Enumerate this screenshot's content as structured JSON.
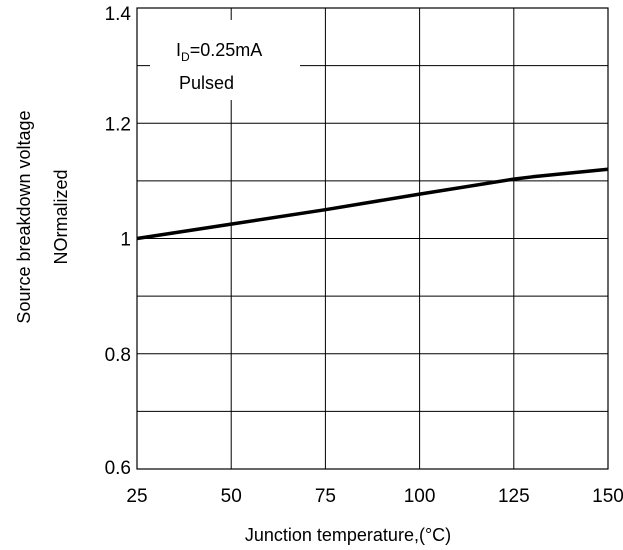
{
  "chart_data": {
    "type": "line",
    "title": "",
    "xlabel": "Junction temperature,(°C)",
    "ylabel_lines": [
      "Source breakdown voltage",
      "NOrmalized"
    ],
    "xlim": [
      25,
      150
    ],
    "ylim": [
      0.6,
      1.4
    ],
    "x_ticks": [
      25,
      50,
      75,
      100,
      125,
      150
    ],
    "x_tick_labels": [
      "25",
      "50",
      "75",
      "100",
      "125",
      "150"
    ],
    "y_ticks": [
      0.6,
      0.8,
      1.0,
      1.2,
      1.4
    ],
    "y_tick_labels": [
      "0.6",
      "0.8",
      "1",
      "1.2",
      "1.4"
    ],
    "y_minor_grid": [
      0.7,
      0.9,
      1.1,
      1.3
    ],
    "grid": true,
    "series": [
      {
        "name": "",
        "x": [
          25,
          50,
          75,
          100,
          125,
          130,
          150
        ],
        "y": [
          1.0,
          1.025,
          1.05,
          1.077,
          1.103,
          1.107,
          1.12
        ]
      }
    ],
    "annotation": {
      "condition_main": "I",
      "condition_sub": "D",
      "condition_value": "=0.25mA",
      "condition_line2": "Pulsed"
    },
    "colors": {
      "line": "#000000",
      "grid": "#000000"
    }
  }
}
